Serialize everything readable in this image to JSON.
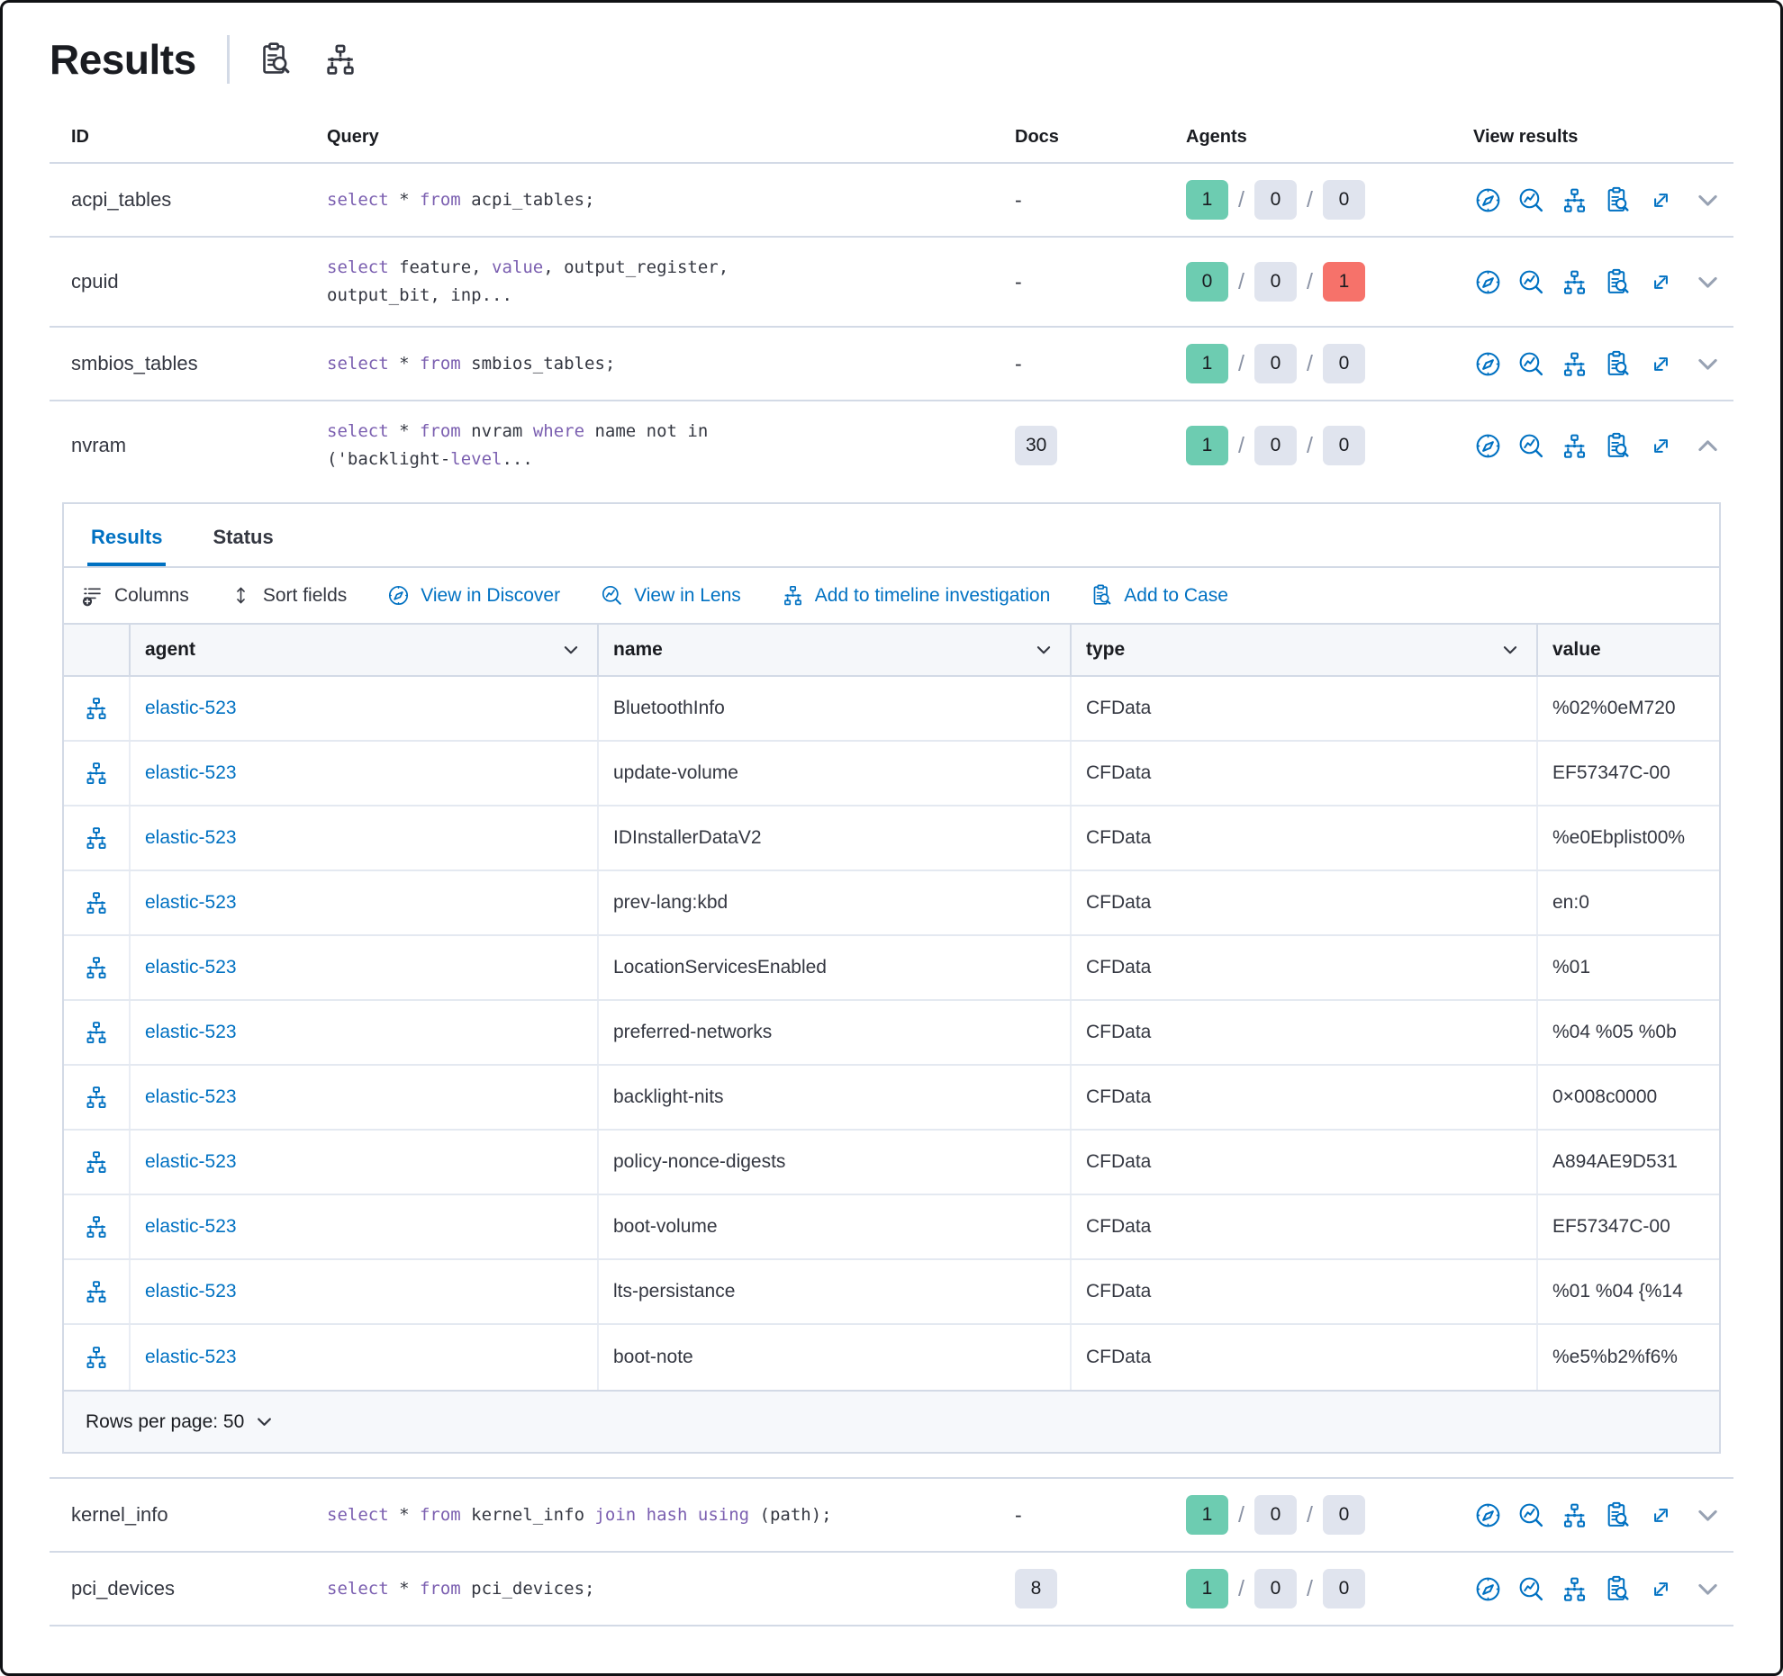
{
  "page": {
    "title": "Results"
  },
  "colors": {
    "accent": "#0071c2",
    "keyword_purple": "#7b5fb0",
    "text_dark": "#343741",
    "heading_dark": "#1a1c21",
    "border_grey": "#d3dae6",
    "badge_green": "#6dccb1",
    "badge_grey": "#e0e4ee",
    "badge_red": "#f6726a",
    "chevron_grey": "#98a2b3",
    "grid_header_bg": "#f5f7fa"
  },
  "header_icons": [
    "clipboard-search",
    "timeline"
  ],
  "results_table": {
    "columns": [
      "ID",
      "Query",
      "Docs",
      "Agents",
      "View results"
    ],
    "view_action_icons": [
      "view-in-discover",
      "view-in-lens",
      "add-to-timeline",
      "add-to-case",
      "expand-results",
      "toggle-row-details"
    ],
    "rows": [
      {
        "id": "acpi_tables",
        "query": [
          {
            "t": "select",
            "k": 1
          },
          {
            "t": " * ",
            "k": 0
          },
          {
            "t": "from",
            "k": 1
          },
          {
            "t": " acpi_tables;",
            "k": 0
          }
        ],
        "docs": "-",
        "docs_badge": false,
        "agents": [
          {
            "n": "1",
            "c": "green"
          },
          {
            "n": "0",
            "c": "grey"
          },
          {
            "n": "0",
            "c": "grey"
          }
        ],
        "expanded": false
      },
      {
        "id": "cpuid",
        "query": [
          {
            "t": "select",
            "k": 1
          },
          {
            "t": " feature, ",
            "k": 0
          },
          {
            "t": "value",
            "k": 1
          },
          {
            "t": ", output_register,",
            "k": 0
          },
          {
            "br": 1
          },
          {
            "t": "output_bit, inp...",
            "k": 0
          }
        ],
        "docs": "-",
        "docs_badge": false,
        "agents": [
          {
            "n": "0",
            "c": "green"
          },
          {
            "n": "0",
            "c": "grey"
          },
          {
            "n": "1",
            "c": "red"
          }
        ],
        "expanded": false
      },
      {
        "id": "smbios_tables",
        "query": [
          {
            "t": "select",
            "k": 1
          },
          {
            "t": " * ",
            "k": 0
          },
          {
            "t": "from",
            "k": 1
          },
          {
            "t": " smbios_tables;",
            "k": 0
          }
        ],
        "docs": "-",
        "docs_badge": false,
        "agents": [
          {
            "n": "1",
            "c": "green"
          },
          {
            "n": "0",
            "c": "grey"
          },
          {
            "n": "0",
            "c": "grey"
          }
        ],
        "expanded": false
      },
      {
        "id": "nvram",
        "query": [
          {
            "t": "select",
            "k": 1
          },
          {
            "t": " * ",
            "k": 0
          },
          {
            "t": "from",
            "k": 1
          },
          {
            "t": " nvram ",
            "k": 0
          },
          {
            "t": "where",
            "k": 1
          },
          {
            "t": " name not in",
            "k": 0
          },
          {
            "br": 1
          },
          {
            "t": "('backlight-",
            "k": 0
          },
          {
            "t": "level",
            "k": 1
          },
          {
            "t": "...",
            "k": 0
          }
        ],
        "docs": "30",
        "docs_badge": true,
        "agents": [
          {
            "n": "1",
            "c": "green"
          },
          {
            "n": "0",
            "c": "grey"
          },
          {
            "n": "0",
            "c": "grey"
          }
        ],
        "expanded": true
      },
      {
        "id": "kernel_info",
        "query": [
          {
            "t": "select",
            "k": 1
          },
          {
            "t": " * ",
            "k": 0
          },
          {
            "t": "from",
            "k": 1
          },
          {
            "t": " kernel_info ",
            "k": 0
          },
          {
            "t": "join",
            "k": 1
          },
          {
            "t": " ",
            "k": 0
          },
          {
            "t": "hash",
            "k": 1
          },
          {
            "t": " ",
            "k": 0
          },
          {
            "t": "using",
            "k": 1
          },
          {
            "t": " (path);",
            "k": 0
          }
        ],
        "docs": "-",
        "docs_badge": false,
        "agents": [
          {
            "n": "1",
            "c": "green"
          },
          {
            "n": "0",
            "c": "grey"
          },
          {
            "n": "0",
            "c": "grey"
          }
        ],
        "expanded": false
      },
      {
        "id": "pci_devices",
        "query": [
          {
            "t": "select",
            "k": 1
          },
          {
            "t": " * ",
            "k": 0
          },
          {
            "t": "from",
            "k": 1
          },
          {
            "t": " pci_devices;",
            "k": 0
          }
        ],
        "docs": "8",
        "docs_badge": true,
        "agents": [
          {
            "n": "1",
            "c": "green"
          },
          {
            "n": "0",
            "c": "grey"
          },
          {
            "n": "0",
            "c": "grey"
          }
        ],
        "expanded": false
      }
    ]
  },
  "expanded_panel": {
    "tabs": [
      {
        "label": "Results",
        "active": true
      },
      {
        "label": "Status",
        "active": false
      }
    ],
    "toolbar": [
      {
        "label": "Columns",
        "icon": "columns",
        "style": "dark"
      },
      {
        "label": "Sort fields",
        "icon": "sort",
        "style": "dark"
      },
      {
        "label": "View in Discover",
        "icon": "compass",
        "style": "link"
      },
      {
        "label": "View in Lens",
        "icon": "lens",
        "style": "link"
      },
      {
        "label": "Add to timeline investigation",
        "icon": "timeline",
        "style": "link"
      },
      {
        "label": "Add to Case",
        "icon": "clipboard-search",
        "style": "link"
      }
    ],
    "grid": {
      "columns": [
        "agent",
        "name",
        "type",
        "value"
      ],
      "rows": [
        {
          "agent": "elastic-523",
          "name": "BluetoothInfo",
          "type": "CFData",
          "value": "%02%0eM720"
        },
        {
          "agent": "elastic-523",
          "name": "update-volume",
          "type": "CFData",
          "value": "EF57347C-00"
        },
        {
          "agent": "elastic-523",
          "name": "IDInstallerDataV2",
          "type": "CFData",
          "value": "%e0Ebplist00%"
        },
        {
          "agent": "elastic-523",
          "name": "prev-lang:kbd",
          "type": "CFData",
          "value": "en:0"
        },
        {
          "agent": "elastic-523",
          "name": "LocationServicesEnabled",
          "type": "CFData",
          "value": "%01"
        },
        {
          "agent": "elastic-523",
          "name": "preferred-networks",
          "type": "CFData",
          "value": "%04 %05 %0b"
        },
        {
          "agent": "elastic-523",
          "name": "backlight-nits",
          "type": "CFData",
          "value": "0×008c0000"
        },
        {
          "agent": "elastic-523",
          "name": "policy-nonce-digests",
          "type": "CFData",
          "value": "A894AE9D531"
        },
        {
          "agent": "elastic-523",
          "name": "boot-volume",
          "type": "CFData",
          "value": "EF57347C-00"
        },
        {
          "agent": "elastic-523",
          "name": "lts-persistance",
          "type": "CFData",
          "value": "%01 %04 {%14"
        },
        {
          "agent": "elastic-523",
          "name": "boot-note",
          "type": "CFData",
          "value": "%e5%b2%f6%"
        }
      ]
    },
    "footer": {
      "rows_per_page": "Rows per page: 50"
    }
  }
}
